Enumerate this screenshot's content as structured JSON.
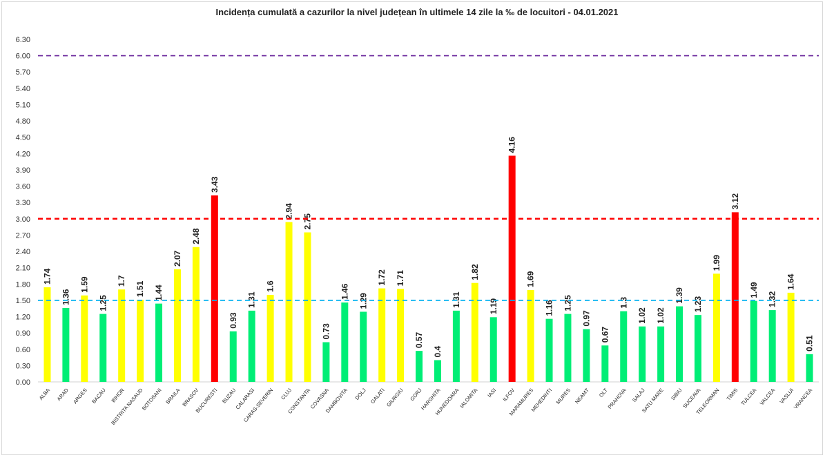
{
  "chart_data": {
    "type": "bar",
    "title": "Incidența cumulată a cazurilor la nivel județean în ultimele 14 zile la ‰ de locuitori - 04.01.2021",
    "xlabel": "",
    "ylabel": "",
    "ylim": [
      0,
      6.3
    ],
    "yticks": [
      "0.00",
      "0.30",
      "0.60",
      "0.90",
      "1.20",
      "1.50",
      "1.80",
      "2.10",
      "2.40",
      "2.70",
      "3.00",
      "3.30",
      "3.60",
      "3.90",
      "4.20",
      "4.50",
      "4.80",
      "5.10",
      "5.40",
      "5.70",
      "6.00",
      "6.30"
    ],
    "categories": [
      "ALBA",
      "ARAD",
      "ARGES",
      "BACAU",
      "BIHOR",
      "BISTRITA NASAUD",
      "BOTOSANI",
      "BRAILA",
      "BRASOV",
      "BUCURESTI",
      "BUZAU",
      "CALARASI",
      "CARAS-SEVERIN",
      "CLUJ",
      "CONSTANTA",
      "COVASNA",
      "DAMBOVITA",
      "DOLJ",
      "GALATI",
      "GIURGIU",
      "GORJ",
      "HARGHITA",
      "HUNEDOARA",
      "IALOMITA",
      "IASI",
      "ILFOV",
      "MARAMURES",
      "MEHEDINTI",
      "MURES",
      "NEAMT",
      "OLT",
      "PRAHOVA",
      "SALAJ",
      "SATU MARE",
      "SIBIU",
      "SUCEAVA",
      "TELEORMAN",
      "TIMIS",
      "TULCEA",
      "VALCEA",
      "VASLUI",
      "VRANCEA"
    ],
    "values": [
      1.74,
      1.36,
      1.59,
      1.25,
      1.7,
      1.51,
      1.44,
      2.07,
      2.48,
      3.43,
      0.93,
      1.31,
      1.6,
      2.94,
      2.75,
      0.73,
      1.46,
      1.29,
      1.72,
      1.71,
      0.57,
      0.4,
      1.31,
      1.82,
      1.19,
      4.16,
      1.69,
      1.16,
      1.25,
      0.97,
      0.67,
      1.3,
      1.02,
      1.02,
      1.39,
      1.23,
      1.99,
      3.12,
      1.49,
      1.32,
      1.64,
      0.51
    ],
    "reference_lines": [
      {
        "value": 6.0,
        "color": "#7030a0"
      },
      {
        "value": 3.0,
        "color": "#ff0000"
      },
      {
        "value": 1.5,
        "color": "#00b0f0"
      }
    ],
    "colors": {
      "low": "#00ee76",
      "mid": "#ffff00",
      "high": "#ff0000"
    },
    "grid": false,
    "legend": "none"
  }
}
